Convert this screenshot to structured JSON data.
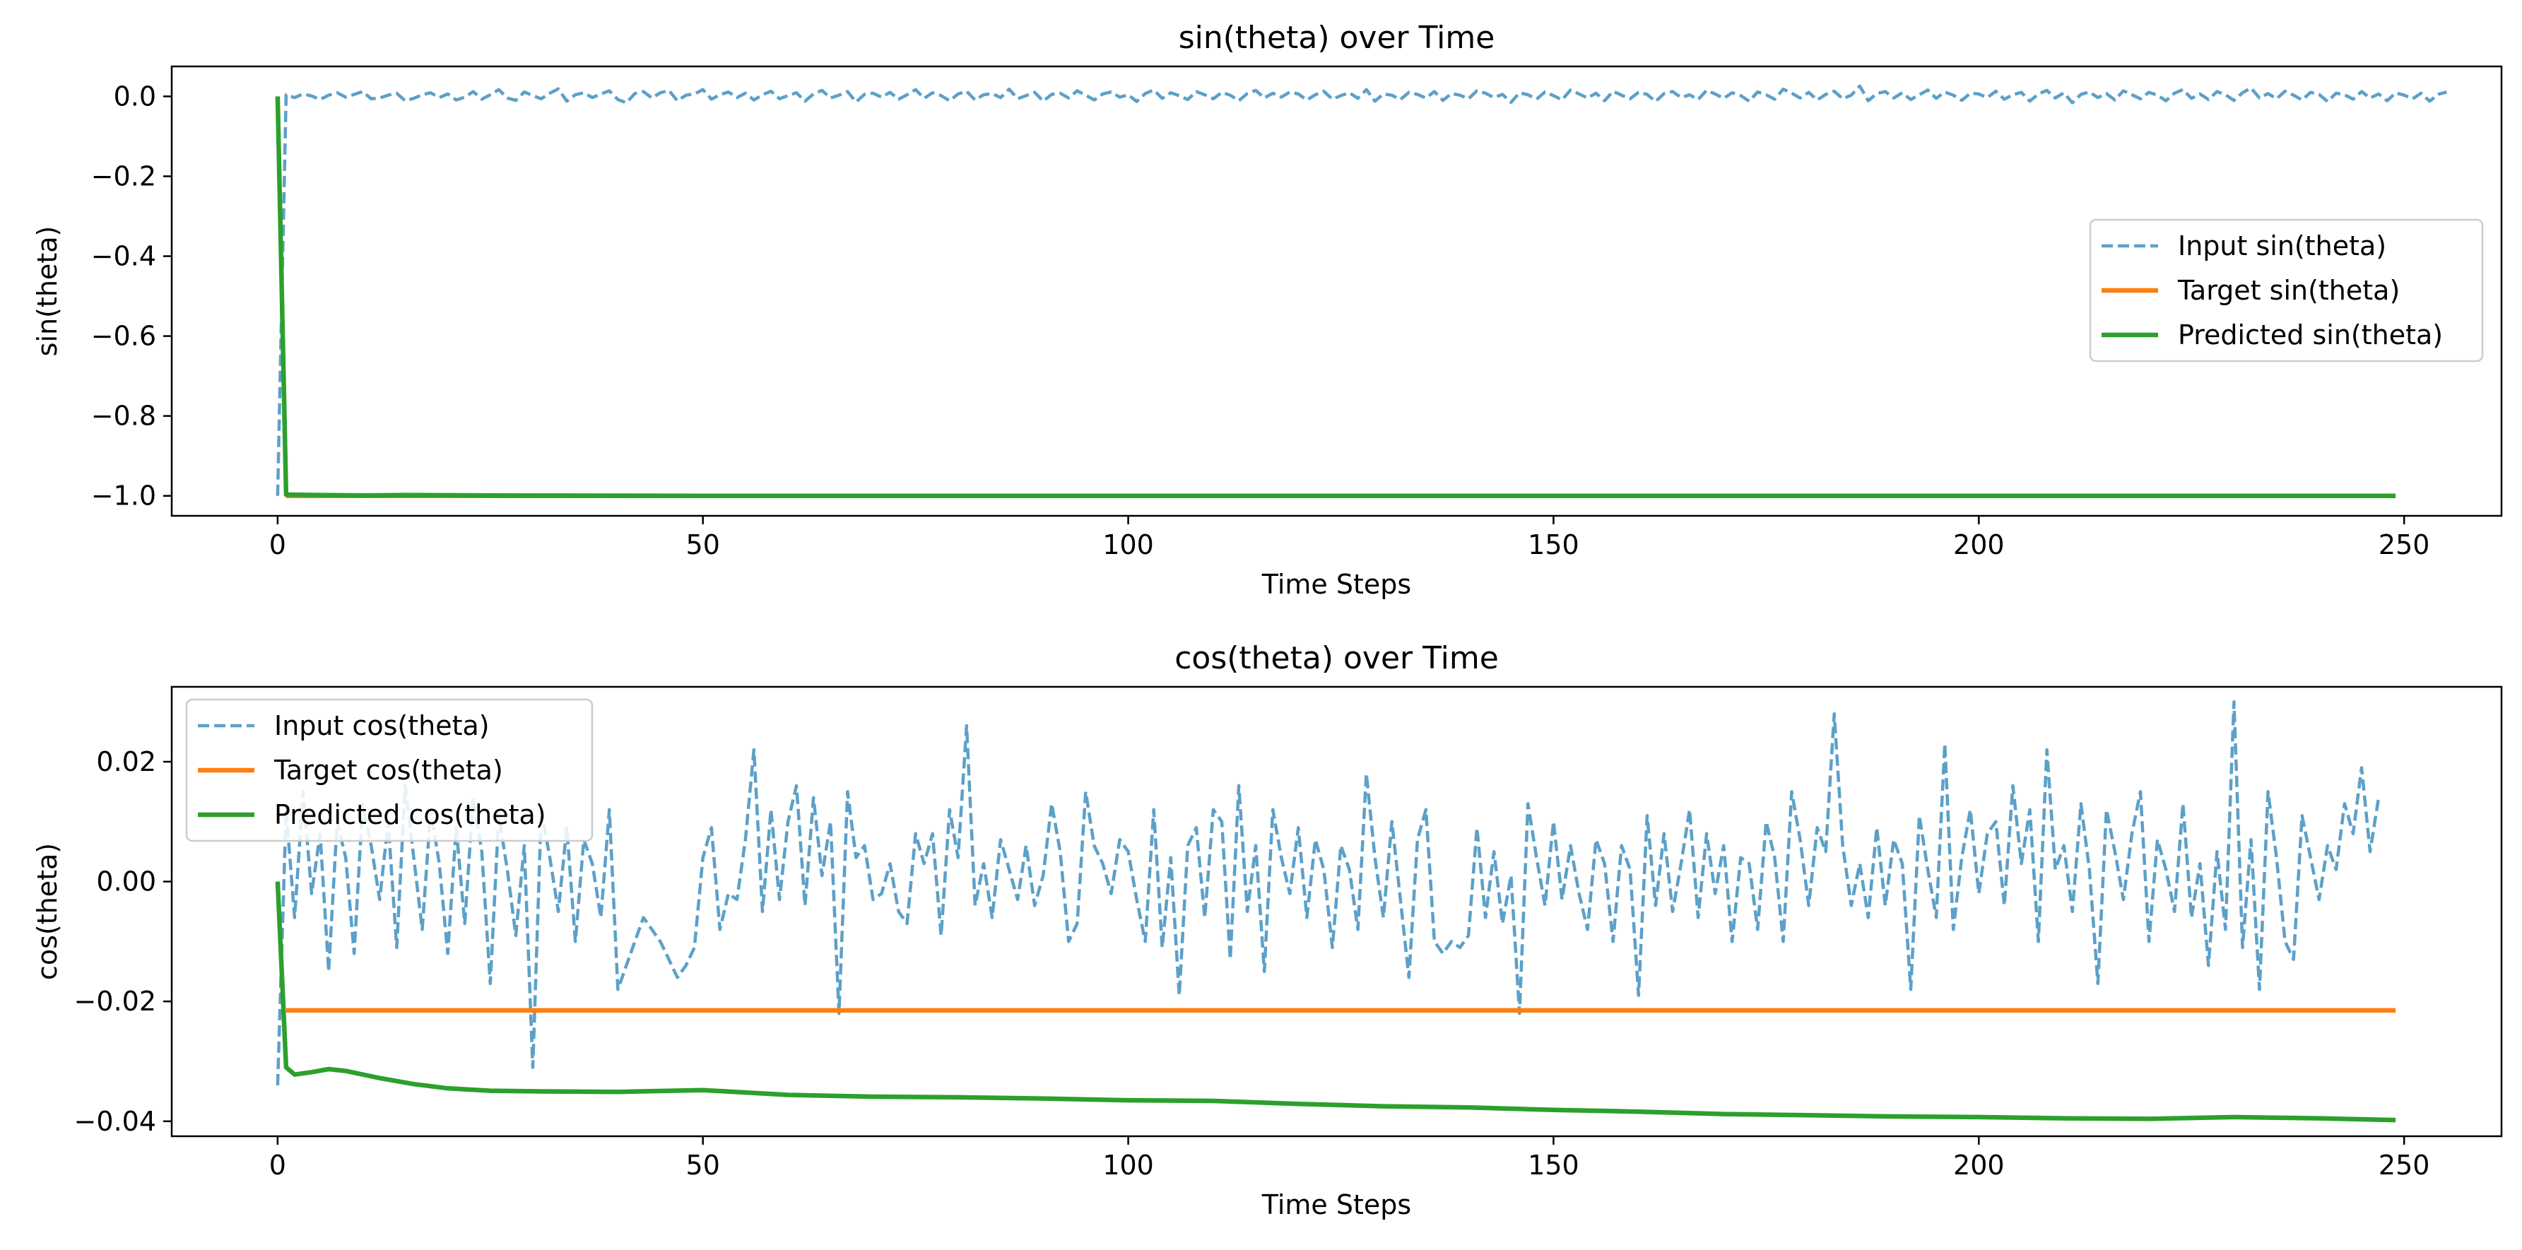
{
  "chart_data": [
    {
      "type": "line",
      "title": "sin(theta) over Time",
      "xlabel": "Time Steps",
      "ylabel": "sin(theta)",
      "xlim": [
        -12.45,
        261.45
      ],
      "ylim": [
        -1.05,
        0.075
      ],
      "xticks": [
        0,
        50,
        100,
        150,
        200,
        250
      ],
      "xtick_labels": [
        "0",
        "50",
        "100",
        "150",
        "200",
        "250"
      ],
      "yticks": [
        0.0,
        -0.2,
        -0.4,
        -0.6,
        -0.8,
        -1.0
      ],
      "ytick_labels": [
        "0.0",
        "−0.2",
        "−0.4",
        "−0.6",
        "−0.8",
        "−1.0"
      ],
      "legend_position": "center-right",
      "series": [
        {
          "name": "Input sin(theta)",
          "color": "#5ca0c9",
          "style": "dashed",
          "x_start": 0,
          "x_step": 1,
          "values": [
            -1.0,
            0.004,
            -0.003,
            0.006,
            0.001,
            -0.008,
            0.003,
            0.009,
            -0.002,
            0.005,
            0.012,
            -0.006,
            -0.004,
            0.003,
            0.008,
            -0.011,
            -0.005,
            0.004,
            0.009,
            -0.003,
            0.006,
            -0.009,
            -0.002,
            0.012,
            -0.007,
            0.004,
            0.017,
            -0.004,
            -0.01,
            0.011,
            0.002,
            -0.006,
            0.008,
            0.019,
            -0.012,
            0.004,
            0.009,
            -0.003,
            0.006,
            0.014,
            -0.008,
            -0.016,
            0.007,
            0.012,
            -0.004,
            0.009,
            0.015,
            -0.011,
            0.003,
            0.006,
            0.017,
            -0.007,
            0.004,
            0.011,
            -0.003,
            0.008,
            -0.009,
            0.004,
            0.013,
            -0.006,
            0.002,
            0.009,
            -0.012,
            0.006,
            0.015,
            -0.004,
            0.003,
            0.012,
            -0.014,
            0.005,
            0.008,
            -0.002,
            0.01,
            -0.007,
            0.004,
            0.017,
            -0.005,
            0.009,
            0.002,
            -0.011,
            0.006,
            0.013,
            -0.009,
            0.004,
            0.007,
            -0.003,
            0.018,
            -0.006,
            0.002,
            0.01,
            -0.012,
            0.005,
            0.008,
            -0.004,
            0.014,
            0.003,
            -0.009,
            0.006,
            0.011,
            -0.002,
            0.004,
            -0.013,
            0.007,
            0.016,
            -0.005,
            0.009,
            0.002,
            -0.008,
            0.012,
            0.004,
            -0.006,
            0.01,
            0.003,
            -0.011,
            0.007,
            0.015,
            -0.004,
            0.008,
            -0.002,
            0.011,
            0.006,
            -0.009,
            0.004,
            0.013,
            -0.007,
            0.002,
            0.009,
            -0.005,
            0.017,
            -0.012,
            0.006,
            0.003,
            -0.008,
            0.01,
            0.005,
            -0.004,
            0.012,
            -0.01,
            0.007,
            0.003,
            -0.006,
            0.014,
            0.008,
            -0.003,
            0.005,
            -0.015,
            0.009,
            0.004,
            -0.007,
            0.011,
            0.002,
            -0.009,
            0.016,
            0.006,
            -0.004,
            0.008,
            -0.011,
            0.013,
            0.003,
            -0.006,
            0.01,
            0.005,
            -0.013,
            0.007,
            0.012,
            -0.003,
            0.004,
            -0.008,
            0.015,
            0.006,
            -0.005,
            0.009,
            0.002,
            -0.012,
            0.011,
            0.004,
            -0.007,
            0.018,
            0.008,
            -0.004,
            0.01,
            -0.009,
            0.005,
            0.013,
            -0.006,
            0.003,
            0.026,
            -0.011,
            0.007,
            0.012,
            -0.004,
            0.009,
            -0.008,
            0.004,
            0.016,
            -0.005,
            0.011,
            0.003,
            -0.01,
            0.008,
            0.006,
            -0.003,
            0.013,
            -0.007,
            0.004,
            0.01,
            -0.012,
            0.006,
            0.015,
            -0.004,
            0.009,
            -0.016,
            0.005,
            0.011,
            -0.003,
            0.007,
            -0.009,
            0.014,
            0.004,
            -0.006,
            0.01,
            0.003,
            -0.011,
            0.008,
            0.017,
            -0.005,
            0.006,
            -0.008,
            0.012,
            0.004,
            -0.01,
            0.009,
            0.021,
            -0.004,
            0.007,
            -0.006,
            0.013,
            0.003,
            -0.009,
            0.01,
            0.005,
            -0.013,
            0.008,
            0.004,
            -0.007,
            0.012,
            -0.004,
            0.006,
            -0.011,
            0.009,
            0.003,
            -0.006,
            0.008,
            -0.012,
            0.005,
            0.011
          ]
        },
        {
          "name": "Target sin(theta)",
          "color": "#ff7f0e",
          "style": "solid",
          "x_start": 1,
          "constant": -1.0,
          "x_end": 249
        },
        {
          "name": "Predicted sin(theta)",
          "color": "#2ca02c",
          "style": "solid",
          "points": [
            [
              0,
              0.0
            ],
            [
              1,
              -0.997
            ],
            [
              5,
              -0.998
            ],
            [
              10,
              -0.999
            ],
            [
              15,
              -0.998
            ],
            [
              25,
              -0.999
            ],
            [
              50,
              -1.0
            ],
            [
              249,
              -1.0
            ]
          ]
        }
      ]
    },
    {
      "type": "line",
      "title": "cos(theta) over Time",
      "xlabel": "Time Steps",
      "ylabel": "cos(theta)",
      "xlim": [
        -12.45,
        261.45
      ],
      "ylim": [
        -0.0425,
        0.0325
      ],
      "xticks": [
        0,
        50,
        100,
        150,
        200,
        250
      ],
      "xtick_labels": [
        "0",
        "50",
        "100",
        "150",
        "200",
        "250"
      ],
      "yticks": [
        0.02,
        0.0,
        -0.02,
        -0.04
      ],
      "ytick_labels": [
        "0.02",
        "0.00",
        "−0.02",
        "−0.04"
      ],
      "legend_position": "top-left",
      "series": [
        {
          "name": "Input cos(theta)",
          "color": "#5ca0c9",
          "style": "dashed",
          "x_start": 0,
          "x_step": 1,
          "values": [
            -0.034,
            0.012,
            -0.006,
            0.015,
            -0.002,
            0.008,
            -0.015,
            0.01,
            0.004,
            -0.012,
            0.013,
            0.006,
            -0.003,
            0.01,
            -0.011,
            0.016,
            0.004,
            -0.008,
            0.012,
            0.003,
            -0.012,
            0.009,
            -0.007,
            0.014,
            0.005,
            -0.017,
            0.011,
            0.002,
            -0.009,
            0.006,
            -0.031,
            0.012,
            0.004,
            -0.005,
            0.009,
            -0.01,
            0.007,
            0.003,
            -0.006,
            0.012,
            -0.018,
            -0.014,
            -0.01,
            -0.006,
            -0.008,
            -0.01,
            -0.013,
            -0.016,
            -0.014,
            -0.011,
            0.004,
            0.009,
            -0.008,
            -0.002,
            -0.003,
            0.007,
            0.022,
            -0.005,
            0.012,
            -0.003,
            0.01,
            0.016,
            -0.004,
            0.014,
            0.001,
            0.01,
            -0.022,
            0.015,
            0.004,
            0.006,
            -0.003,
            -0.002,
            0.003,
            -0.005,
            -0.007,
            0.008,
            0.003,
            0.008,
            -0.009,
            0.012,
            0.004,
            0.026,
            -0.004,
            0.003,
            -0.006,
            0.007,
            0.002,
            -0.003,
            0.006,
            -0.004,
            0.001,
            0.013,
            0.005,
            -0.01,
            -0.007,
            0.015,
            0.006,
            0.003,
            -0.002,
            0.007,
            0.005,
            -0.003,
            -0.01,
            0.012,
            -0.011,
            0.004,
            -0.019,
            0.006,
            0.009,
            -0.006,
            0.012,
            0.01,
            -0.013,
            0.016,
            -0.005,
            0.006,
            -0.015,
            0.012,
            0.004,
            -0.002,
            0.009,
            -0.006,
            0.007,
            0.002,
            -0.011,
            0.006,
            0.002,
            -0.008,
            0.018,
            0.004,
            -0.006,
            0.01,
            -0.003,
            -0.016,
            0.007,
            0.012,
            -0.01,
            -0.012,
            -0.01,
            -0.011,
            -0.009,
            0.009,
            -0.006,
            0.005,
            -0.007,
            0.001,
            -0.022,
            0.013,
            0.004,
            -0.004,
            0.01,
            -0.003,
            0.006,
            -0.002,
            -0.008,
            0.007,
            0.003,
            -0.01,
            0.006,
            0.002,
            -0.019,
            0.011,
            -0.004,
            0.008,
            -0.005,
            0.003,
            0.012,
            -0.006,
            0.008,
            -0.002,
            0.006,
            -0.01,
            0.004,
            0.003,
            -0.008,
            0.01,
            0.004,
            -0.01,
            0.015,
            0.007,
            -0.004,
            0.009,
            0.005,
            0.028,
            0.006,
            -0.004,
            0.003,
            -0.006,
            0.009,
            -0.004,
            0.007,
            0.003,
            -0.018,
            0.011,
            0.002,
            -0.006,
            0.023,
            -0.008,
            0.004,
            0.012,
            -0.002,
            0.008,
            0.01,
            -0.004,
            0.016,
            0.003,
            0.012,
            -0.01,
            0.022,
            0.002,
            0.006,
            -0.005,
            0.013,
            0.002,
            -0.017,
            0.012,
            0.005,
            -0.003,
            0.008,
            0.015,
            -0.01,
            0.007,
            0.002,
            -0.005,
            0.013,
            -0.006,
            0.003,
            -0.014,
            0.005,
            -0.008,
            0.03,
            -0.011,
            0.007,
            -0.018,
            0.015,
            0.004,
            -0.01,
            -0.013,
            0.011,
            0.004,
            -0.003,
            0.006,
            0.002,
            0.013,
            0.008,
            0.019,
            0.005,
            0.014
          ]
        },
        {
          "name": "Target cos(theta)",
          "color": "#ff7f0e",
          "style": "solid",
          "x_start": 1,
          "constant": -0.0215,
          "x_end": 249
        },
        {
          "name": "Predicted cos(theta)",
          "color": "#2ca02c",
          "style": "solid",
          "points": [
            [
              0,
              0.0
            ],
            [
              1,
              -0.031
            ],
            [
              2,
              -0.0322
            ],
            [
              4,
              -0.0318
            ],
            [
              6,
              -0.0313
            ],
            [
              8,
              -0.0316
            ],
            [
              12,
              -0.0328
            ],
            [
              16,
              -0.0338
            ],
            [
              20,
              -0.0345
            ],
            [
              25,
              -0.0349
            ],
            [
              30,
              -0.035
            ],
            [
              40,
              -0.0351
            ],
            [
              50,
              -0.0348
            ],
            [
              60,
              -0.0356
            ],
            [
              70,
              -0.0359
            ],
            [
              80,
              -0.036
            ],
            [
              90,
              -0.0362
            ],
            [
              100,
              -0.0365
            ],
            [
              110,
              -0.0366
            ],
            [
              120,
              -0.0371
            ],
            [
              130,
              -0.0375
            ],
            [
              140,
              -0.0377
            ],
            [
              150,
              -0.0381
            ],
            [
              160,
              -0.0384
            ],
            [
              170,
              -0.0388
            ],
            [
              180,
              -0.039
            ],
            [
              190,
              -0.0392
            ],
            [
              200,
              -0.0393
            ],
            [
              210,
              -0.0395
            ],
            [
              220,
              -0.0396
            ],
            [
              230,
              -0.0393
            ],
            [
              240,
              -0.0395
            ],
            [
              249,
              -0.0398
            ]
          ]
        }
      ]
    }
  ]
}
